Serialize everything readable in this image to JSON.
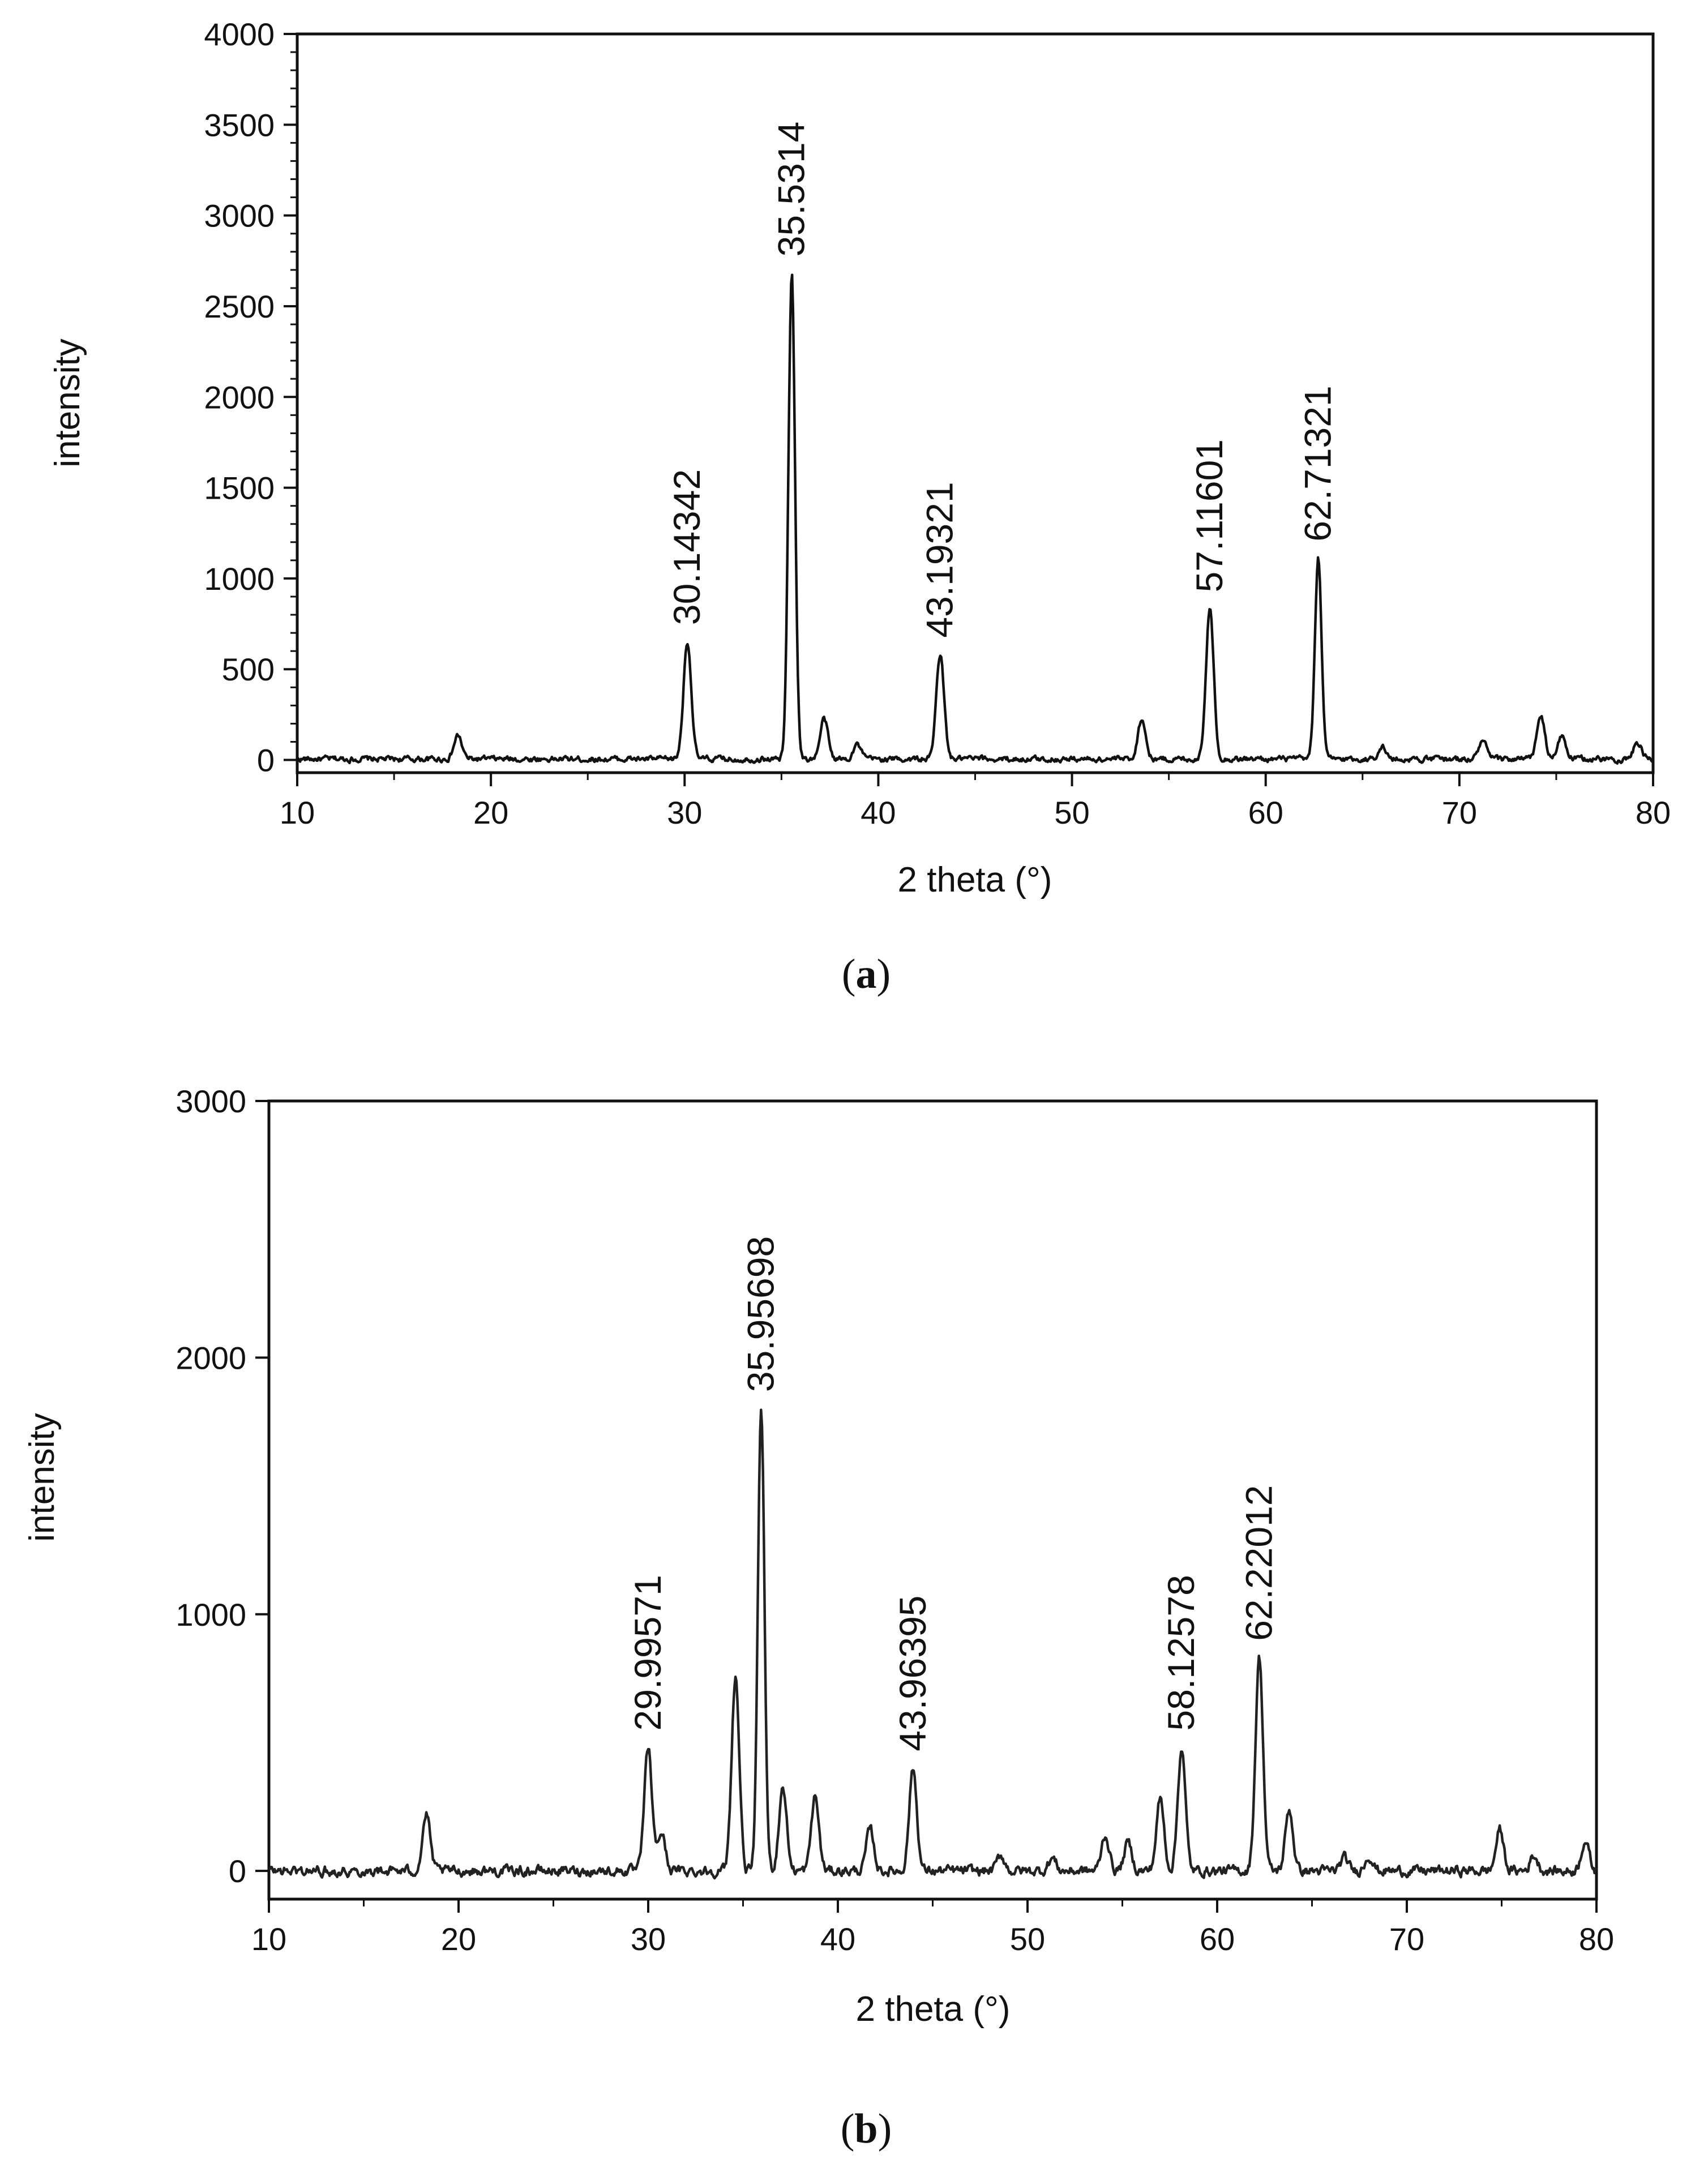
{
  "panels": [
    {
      "caption": {
        "open": "(",
        "letter": "a",
        "close": ")"
      }
    },
    {
      "caption": {
        "open": "(",
        "letter": "b",
        "close": ")"
      }
    }
  ],
  "chart_data": [
    {
      "type": "line",
      "xlabel": "2 theta (°)",
      "ylabel": "intensity",
      "xlim": [
        10,
        80
      ],
      "ylim": [
        -70,
        4000
      ],
      "xticks": [
        "10",
        "20",
        "30",
        "40",
        "50",
        "60",
        "70",
        "80"
      ],
      "yticks": [
        "0",
        "500",
        "1000",
        "1500",
        "2000",
        "2500",
        "3000",
        "3500",
        "4000"
      ],
      "grid": false,
      "line_color": "#111111",
      "peaks": [
        {
          "x": 18.3,
          "y": 130
        },
        {
          "x": 30.14342,
          "y": 650,
          "label": "30.14342"
        },
        {
          "x": 35.5314,
          "y": 2680,
          "label": "35.5314"
        },
        {
          "x": 37.2,
          "y": 220
        },
        {
          "x": 38.9,
          "y": 80
        },
        {
          "x": 43.19321,
          "y": 580,
          "label": "43.19321"
        },
        {
          "x": 53.6,
          "y": 220
        },
        {
          "x": 57.11601,
          "y": 830,
          "label": "57.11601"
        },
        {
          "x": 62.71321,
          "y": 1110,
          "label": "62.71321"
        },
        {
          "x": 66.0,
          "y": 70
        },
        {
          "x": 71.2,
          "y": 100
        },
        {
          "x": 74.2,
          "y": 240
        },
        {
          "x": 75.3,
          "y": 130
        },
        {
          "x": 79.2,
          "y": 90
        }
      ],
      "baseline": 5,
      "noise": 25
    },
    {
      "type": "line",
      "xlabel": "2 theta (°)",
      "ylabel": "intensity",
      "xlim": [
        10,
        80
      ],
      "ylim": [
        -110,
        3000
      ],
      "xticks": [
        "10",
        "20",
        "30",
        "40",
        "50",
        "60",
        "70",
        "80"
      ],
      "yticks": [
        "0",
        "1000",
        "2000",
        "3000"
      ],
      "grid": false,
      "line_color": "#222222",
      "peaks": [
        {
          "x": 18.3,
          "y": 220
        },
        {
          "x": 29.99571,
          "y": 480,
          "label": "29.99571"
        },
        {
          "x": 30.7,
          "y": 150
        },
        {
          "x": 34.6,
          "y": 760
        },
        {
          "x": 35.95698,
          "y": 1800,
          "label": "35.95698"
        },
        {
          "x": 37.1,
          "y": 330
        },
        {
          "x": 38.8,
          "y": 290
        },
        {
          "x": 41.7,
          "y": 160
        },
        {
          "x": 43.96395,
          "y": 400,
          "label": "43.96395"
        },
        {
          "x": 48.6,
          "y": 60
        },
        {
          "x": 51.3,
          "y": 50
        },
        {
          "x": 54.1,
          "y": 140
        },
        {
          "x": 55.3,
          "y": 110
        },
        {
          "x": 57.0,
          "y": 280
        },
        {
          "x": 58.12578,
          "y": 480,
          "label": "58.12578"
        },
        {
          "x": 62.22012,
          "y": 830,
          "label": "62.22012"
        },
        {
          "x": 63.8,
          "y": 240
        },
        {
          "x": 66.7,
          "y": 50
        },
        {
          "x": 68.0,
          "y": 60
        },
        {
          "x": 74.9,
          "y": 160
        },
        {
          "x": 76.7,
          "y": 60
        },
        {
          "x": 79.4,
          "y": 120
        }
      ],
      "baseline": 0,
      "noise": 30
    }
  ]
}
